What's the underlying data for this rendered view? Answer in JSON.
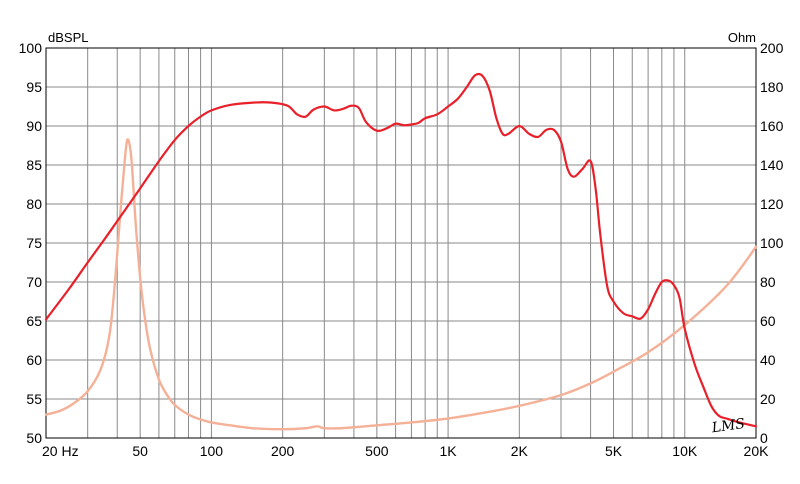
{
  "chart_data": {
    "type": "line",
    "title": "",
    "left_axis_label": "dBSPL",
    "right_axis_label": "Ohm",
    "x_scale": "log",
    "xlim": [
      20,
      20000
    ],
    "ylim_left": [
      50,
      100
    ],
    "ylim_right": [
      0,
      200
    ],
    "grid": true,
    "x_tick_labels": [
      {
        "value": 20,
        "label": "20  Hz"
      },
      {
        "value": 50,
        "label": "50"
      },
      {
        "value": 100,
        "label": "100"
      },
      {
        "value": 200,
        "label": "200"
      },
      {
        "value": 500,
        "label": "500"
      },
      {
        "value": 1000,
        "label": "1K"
      },
      {
        "value": 2000,
        "label": "2K"
      },
      {
        "value": 5000,
        "label": "5K"
      },
      {
        "value": 10000,
        "label": "10K"
      },
      {
        "value": 20000,
        "label": "20K"
      }
    ],
    "y_left_ticks": [
      50,
      55,
      60,
      65,
      70,
      75,
      80,
      85,
      90,
      95,
      100
    ],
    "y_right_ticks": [
      0,
      20,
      40,
      60,
      80,
      100,
      120,
      140,
      160,
      180,
      200
    ],
    "series": [
      {
        "axis": "left",
        "color": "#e8202a",
        "x": [
          20,
          25,
          30,
          35,
          40,
          50,
          60,
          70,
          80,
          90,
          100,
          120,
          150,
          180,
          210,
          230,
          250,
          270,
          300,
          330,
          360,
          390,
          420,
          450,
          500,
          550,
          600,
          650,
          700,
          750,
          800,
          900,
          1000,
          1100,
          1200,
          1300,
          1400,
          1500,
          1600,
          1700,
          1800,
          2000,
          2200,
          2400,
          2600,
          2800,
          3000,
          3200,
          3400,
          3700,
          4000,
          4200,
          4400,
          4700,
          5000,
          5500,
          6000,
          6500,
          7000,
          7500,
          8000,
          8500,
          9000,
          9500,
          10000,
          11000,
          12000,
          13000,
          14000,
          15000,
          17000,
          20000
        ],
        "values": [
          65.2,
          69.1,
          72.5,
          75.3,
          77.8,
          82.0,
          85.5,
          88.2,
          90.0,
          91.2,
          92.0,
          92.7,
          93.0,
          93.0,
          92.6,
          91.5,
          91.2,
          92.1,
          92.5,
          92.0,
          92.2,
          92.6,
          92.3,
          90.5,
          89.4,
          89.7,
          90.3,
          90.1,
          90.2,
          90.4,
          91.0,
          91.5,
          92.5,
          93.5,
          95.0,
          96.5,
          96.4,
          94.5,
          91.0,
          89.0,
          89.0,
          90.0,
          89.0,
          88.6,
          89.5,
          89.5,
          88.0,
          84.5,
          83.5,
          84.5,
          85.5,
          82.0,
          76.0,
          69.5,
          67.5,
          66.0,
          65.6,
          65.3,
          66.5,
          68.5,
          70.0,
          70.2,
          69.6,
          68.0,
          64.0,
          59.5,
          56.5,
          54.0,
          52.8,
          52.5,
          52.0,
          51.5
        ]
      },
      {
        "axis": "right",
        "color": "#f4b197",
        "x": [
          20,
          23,
          26,
          30,
          34,
          37,
          39,
          41,
          43,
          44,
          45,
          46,
          47,
          48,
          50,
          52,
          55,
          60,
          65,
          70,
          80,
          90,
          100,
          120,
          150,
          200,
          250,
          280,
          300,
          350,
          400,
          500,
          700,
          1000,
          1500,
          2000,
          3000,
          4000,
          5000,
          7000,
          10000,
          15000,
          20000
        ],
        "values": [
          12.0,
          14.0,
          17.5,
          24.0,
          35.0,
          52.0,
          78.0,
          112.0,
          142.0,
          152.5,
          151.0,
          142.0,
          125.0,
          108.0,
          82.0,
          64.0,
          46.0,
          30.0,
          22.0,
          17.0,
          12.0,
          9.5,
          8.0,
          6.5,
          5.0,
          4.5,
          5.0,
          6.0,
          5.0,
          5.0,
          5.5,
          6.5,
          8.0,
          10.0,
          13.5,
          16.5,
          22.0,
          28.0,
          34.0,
          44.0,
          58.0,
          78.0,
          98.0
        ]
      }
    ]
  },
  "logo_text": "LMS"
}
